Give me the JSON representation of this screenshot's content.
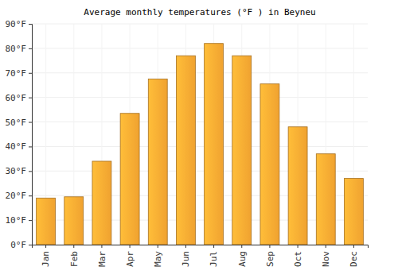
{
  "chart_data": {
    "type": "bar",
    "title": "Average monthly temperatures (°F ) in Beyneu",
    "categories": [
      "Jan",
      "Feb",
      "Mar",
      "Apr",
      "May",
      "Jun",
      "Jul",
      "Aug",
      "Sep",
      "Oct",
      "Nov",
      "Dec"
    ],
    "values": [
      19,
      19.5,
      34,
      53.5,
      67.5,
      77,
      82,
      77,
      65.5,
      48,
      37,
      27
    ],
    "color": "#fdab33",
    "ylim": [
      0,
      90
    ],
    "yticks": [
      {
        "value": 0,
        "label": "0°F"
      },
      {
        "value": 10,
        "label": "10°F"
      },
      {
        "value": 20,
        "label": "20°F"
      },
      {
        "value": 30,
        "label": "30°F"
      },
      {
        "value": 40,
        "label": "40°F"
      },
      {
        "value": 50,
        "label": "50°F"
      },
      {
        "value": 60,
        "label": "60°F"
      },
      {
        "value": 70,
        "label": "70°F"
      },
      {
        "value": 80,
        "label": "80°F"
      },
      {
        "value": 90,
        "label": "90°F"
      }
    ],
    "grid": true
  }
}
